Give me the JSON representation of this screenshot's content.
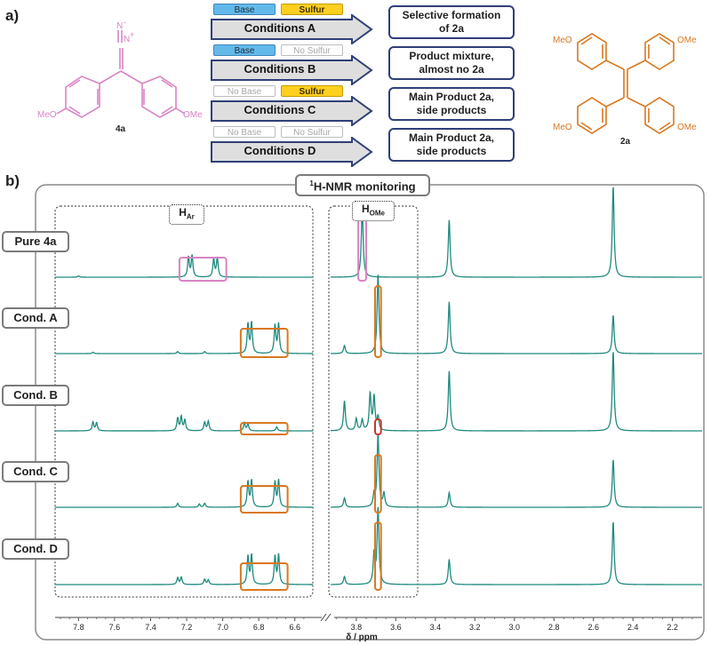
{
  "panel_a": {
    "label": "a)",
    "reactant": {
      "name": "4a",
      "substituent_left": "MeO",
      "substituent_right": "OMe",
      "n_top": "N",
      "n_charge_top": "-",
      "n_mid": "N",
      "n_charge_mid": "+"
    },
    "product": {
      "name": "2a",
      "tl": "MeO",
      "tr": "OMe",
      "bl": "MeO",
      "br": "OMe"
    },
    "conditions": [
      {
        "label": "Conditions A",
        "chip1": "Base",
        "chip1_on": true,
        "chip2": "Sulfur",
        "chip2_on": true,
        "result": "Selective formation\nof 2a"
      },
      {
        "label": "Conditions B",
        "chip1": "Base",
        "chip1_on": true,
        "chip2": "No Sulfur",
        "chip2_on": false,
        "result": "Product mixture,\nalmost no 2a"
      },
      {
        "label": "Conditions C",
        "chip1": "No Base",
        "chip1_on": false,
        "chip2": "Sulfur",
        "chip2_on": true,
        "result": "Main Product 2a,\nside products"
      },
      {
        "label": "Conditions D",
        "chip1": "No Base",
        "chip1_on": false,
        "chip2": "No Sulfur",
        "chip2_on": false,
        "result": "Main Product 2a,\nside products"
      }
    ]
  },
  "panel_b": {
    "label": "b)",
    "title_sup": "1",
    "title_main": "H-NMR monitoring",
    "region_ar": {
      "main": "H",
      "sub": "Ar"
    },
    "region_ome": {
      "main": "H",
      "sub": "OMe"
    },
    "traces": [
      "Pure 4a",
      "Cond. A",
      "Cond. B",
      "Cond. C",
      "Cond. D"
    ],
    "axis_label": "δ / ppm",
    "colors": {
      "trace": "#1f8a7e",
      "pink": "#d983c3",
      "orange": "#d9781f",
      "red": "#c0392b",
      "navy": "#2f3f78"
    }
  },
  "chart_data": {
    "type": "line",
    "title": "1H-NMR monitoring",
    "xlabel": "δ / ppm",
    "x_reversed": true,
    "axis_break": [
      6.6,
      3.9
    ],
    "ticks_left": [
      7.8,
      7.6,
      7.4,
      7.2,
      7.0,
      6.8,
      6.6
    ],
    "ticks_right": [
      3.8,
      3.6,
      3.4,
      3.2,
      3.0,
      2.8,
      2.6,
      2.4,
      2.2
    ],
    "series": [
      {
        "name": "Pure 4a",
        "peaks": [
          [
            7.19,
            0.3
          ],
          [
            7.17,
            0.32
          ],
          [
            7.05,
            0.27
          ],
          [
            7.03,
            0.29
          ],
          [
            3.77,
            1.05
          ],
          [
            3.33,
            0.86
          ],
          [
            2.5,
            1.37
          ],
          [
            7.8,
            0.02
          ]
        ]
      },
      {
        "name": "Cond. A",
        "peaks": [
          [
            6.86,
            0.44
          ],
          [
            6.84,
            0.46
          ],
          [
            6.71,
            0.42
          ],
          [
            6.69,
            0.44
          ],
          [
            3.69,
            1.2
          ],
          [
            3.33,
            0.78
          ],
          [
            2.5,
            0.58
          ],
          [
            3.86,
            0.12
          ],
          [
            7.72,
            0.02
          ],
          [
            7.25,
            0.03
          ],
          [
            7.1,
            0.03
          ]
        ]
      },
      {
        "name": "Cond. B",
        "peaks": [
          [
            7.72,
            0.13
          ],
          [
            7.7,
            0.12
          ],
          [
            7.25,
            0.19
          ],
          [
            7.23,
            0.21
          ],
          [
            7.21,
            0.16
          ],
          [
            7.1,
            0.13
          ],
          [
            7.08,
            0.14
          ],
          [
            6.88,
            0.12
          ],
          [
            6.86,
            0.1
          ],
          [
            6.7,
            0.06
          ],
          [
            3.86,
            0.45
          ],
          [
            3.8,
            0.18
          ],
          [
            3.77,
            0.16
          ],
          [
            3.73,
            0.55
          ],
          [
            3.71,
            0.5
          ],
          [
            3.69,
            0.2
          ],
          [
            3.33,
            0.9
          ],
          [
            2.5,
            1.2
          ]
        ]
      },
      {
        "name": "Cond. C",
        "peaks": [
          [
            6.86,
            0.38
          ],
          [
            6.84,
            0.4
          ],
          [
            6.71,
            0.38
          ],
          [
            6.69,
            0.4
          ],
          [
            7.25,
            0.06
          ],
          [
            7.13,
            0.05
          ],
          [
            7.1,
            0.06
          ],
          [
            3.69,
            1.1
          ],
          [
            3.66,
            0.2
          ],
          [
            3.86,
            0.14
          ],
          [
            3.71,
            0.18
          ],
          [
            3.33,
            0.22
          ],
          [
            2.5,
            0.72
          ]
        ]
      },
      {
        "name": "Cond. D",
        "peaks": [
          [
            6.86,
            0.42
          ],
          [
            6.84,
            0.44
          ],
          [
            6.71,
            0.42
          ],
          [
            6.69,
            0.44
          ],
          [
            7.25,
            0.1
          ],
          [
            7.23,
            0.11
          ],
          [
            7.1,
            0.08
          ],
          [
            7.08,
            0.07
          ],
          [
            3.69,
            1.15
          ],
          [
            3.71,
            0.45
          ],
          [
            3.86,
            0.12
          ],
          [
            3.33,
            0.38
          ],
          [
            2.5,
            0.95
          ]
        ]
      }
    ]
  }
}
